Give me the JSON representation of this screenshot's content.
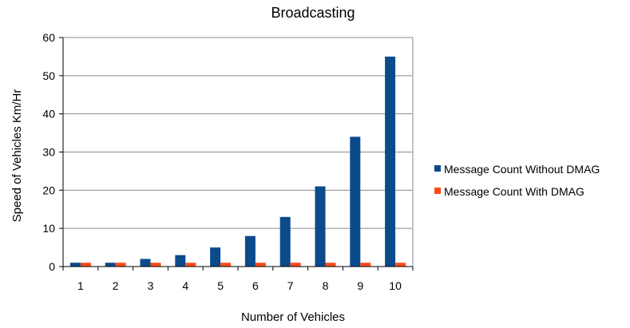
{
  "chart_data": {
    "type": "bar",
    "title": "Broadcasting",
    "xlabel": "Number  of Vehicles",
    "ylabel": "Speed  of Vehicles  Km/Hr",
    "categories": [
      "1",
      "2",
      "3",
      "4",
      "5",
      "6",
      "7",
      "8",
      "9",
      "10"
    ],
    "ylim": [
      0,
      60
    ],
    "yticks": [
      0,
      10,
      20,
      30,
      40,
      50,
      60
    ],
    "grid": true,
    "legend_position": "right",
    "series": [
      {
        "name": "Message Count Without DMAG",
        "color": "#0B4A8B",
        "values": [
          1,
          1,
          2,
          3,
          5,
          8,
          13,
          21,
          34,
          55
        ]
      },
      {
        "name": "Message Count With DMAG",
        "color": "#FF4A1C",
        "values": [
          1,
          1,
          1,
          1,
          1,
          1,
          1,
          1,
          1,
          1
        ]
      }
    ]
  }
}
